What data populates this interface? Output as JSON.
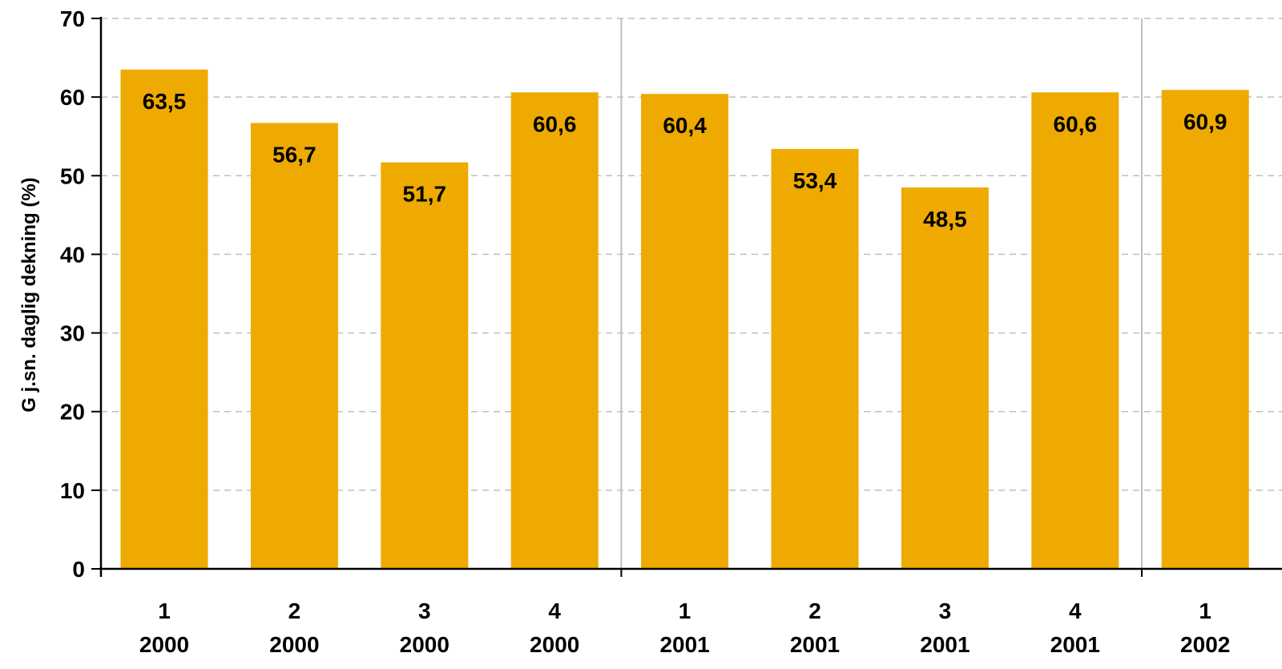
{
  "chart_data": {
    "type": "bar",
    "categories": [
      {
        "quarter": "1",
        "year": "2000"
      },
      {
        "quarter": "2",
        "year": "2000"
      },
      {
        "quarter": "3",
        "year": "2000"
      },
      {
        "quarter": "4",
        "year": "2000"
      },
      {
        "quarter": "1",
        "year": "2001"
      },
      {
        "quarter": "2",
        "year": "2001"
      },
      {
        "quarter": "3",
        "year": "2001"
      },
      {
        "quarter": "4",
        "year": "2001"
      },
      {
        "quarter": "1",
        "year": "2002"
      }
    ],
    "values": [
      63.5,
      56.7,
      51.7,
      60.6,
      60.4,
      53.4,
      48.5,
      60.6,
      60.9
    ],
    "data_labels": [
      "63,5",
      "56,7",
      "51,7",
      "60,6",
      "60,4",
      "53,4",
      "48,5",
      "60,6",
      "60,9"
    ],
    "title": "",
    "xlabel": "",
    "ylabel": "G j.sn. daglig dekning (%)",
    "ylim": [
      0,
      70
    ],
    "yticks": [
      "0",
      "10",
      "20",
      "30",
      "40",
      "50",
      "60",
      "70"
    ],
    "grid": true,
    "legend": "none",
    "bar_color": "#EEAA00",
    "grid_color": "#bfbfbf",
    "year_separators_after": [
      "4",
      "8"
    ]
  }
}
